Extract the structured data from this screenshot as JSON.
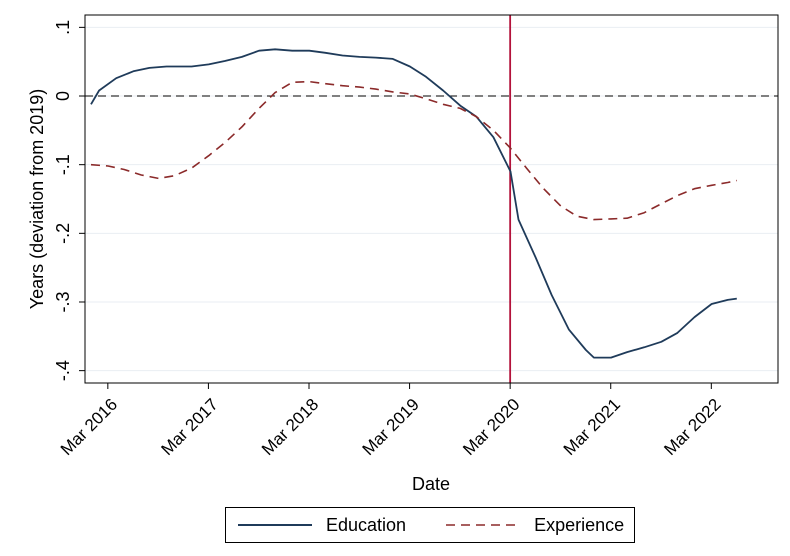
{
  "chart_data": {
    "type": "line",
    "xlabel": "Date",
    "ylabel": "Years (deviation from 2019)",
    "x_ticks": [
      {
        "label": "Mar 2016",
        "value": 2016.167
      },
      {
        "label": "Mar 2017",
        "value": 2017.167
      },
      {
        "label": "Mar 2018",
        "value": 2018.167
      },
      {
        "label": "Mar 2019",
        "value": 2019.167
      },
      {
        "label": "Mar 2020",
        "value": 2020.167
      },
      {
        "label": "Mar 2021",
        "value": 2021.167
      },
      {
        "label": "Mar 2022",
        "value": 2022.167
      }
    ],
    "y_ticks": [
      {
        "label": ".1",
        "value": 0.1
      },
      {
        "label": "0",
        "value": 0
      },
      {
        "label": "-.1",
        "value": -0.1
      },
      {
        "label": "-.2",
        "value": -0.2
      },
      {
        "label": "-.3",
        "value": -0.3
      },
      {
        "label": "-.4",
        "value": -0.4
      }
    ],
    "xlim": [
      2015.94,
      2022.83
    ],
    "ylim": [
      -0.418,
      0.118
    ],
    "grid": true,
    "reference_lines": {
      "horizontal": {
        "value": 0,
        "style": "dashed",
        "color": "#000000"
      },
      "vertical": {
        "value": 2020.167,
        "style": "solid",
        "color": "#b3123b"
      }
    },
    "legend_position": "bottom",
    "series": [
      {
        "name": "Education",
        "color": "#1f3b5a",
        "style": "solid",
        "points": [
          [
            2016.0,
            -0.012
          ],
          [
            2016.08,
            0.008
          ],
          [
            2016.25,
            0.026
          ],
          [
            2016.42,
            0.036
          ],
          [
            2016.58,
            0.041
          ],
          [
            2016.75,
            0.043
          ],
          [
            2016.92,
            0.043
          ],
          [
            2017.0,
            0.043
          ],
          [
            2017.17,
            0.046
          ],
          [
            2017.33,
            0.051
          ],
          [
            2017.5,
            0.057
          ],
          [
            2017.67,
            0.066
          ],
          [
            2017.83,
            0.068
          ],
          [
            2018.0,
            0.066
          ],
          [
            2018.17,
            0.066
          ],
          [
            2018.33,
            0.063
          ],
          [
            2018.5,
            0.059
          ],
          [
            2018.67,
            0.057
          ],
          [
            2018.83,
            0.056
          ],
          [
            2019.0,
            0.054
          ],
          [
            2019.17,
            0.043
          ],
          [
            2019.33,
            0.028
          ],
          [
            2019.5,
            0.008
          ],
          [
            2019.67,
            -0.014
          ],
          [
            2019.83,
            -0.03
          ],
          [
            2020.0,
            -0.06
          ],
          [
            2020.17,
            -0.11
          ],
          [
            2020.25,
            -0.18
          ],
          [
            2020.42,
            -0.235
          ],
          [
            2020.58,
            -0.29
          ],
          [
            2020.75,
            -0.34
          ],
          [
            2020.92,
            -0.37
          ],
          [
            2021.0,
            -0.381
          ],
          [
            2021.17,
            -0.381
          ],
          [
            2021.33,
            -0.373
          ],
          [
            2021.5,
            -0.366
          ],
          [
            2021.67,
            -0.358
          ],
          [
            2021.83,
            -0.345
          ],
          [
            2022.0,
            -0.322
          ],
          [
            2022.17,
            -0.303
          ],
          [
            2022.33,
            -0.297
          ],
          [
            2022.42,
            -0.295
          ]
        ]
      },
      {
        "name": "Experience",
        "color": "#8b2a2a",
        "style": "dashed",
        "points": [
          [
            2016.0,
            -0.1
          ],
          [
            2016.17,
            -0.102
          ],
          [
            2016.33,
            -0.107
          ],
          [
            2016.5,
            -0.115
          ],
          [
            2016.67,
            -0.12
          ],
          [
            2016.83,
            -0.116
          ],
          [
            2017.0,
            -0.105
          ],
          [
            2017.17,
            -0.087
          ],
          [
            2017.33,
            -0.068
          ],
          [
            2017.5,
            -0.045
          ],
          [
            2017.67,
            -0.018
          ],
          [
            2017.83,
            0.005
          ],
          [
            2018.0,
            0.02
          ],
          [
            2018.17,
            0.021
          ],
          [
            2018.33,
            0.018
          ],
          [
            2018.5,
            0.015
          ],
          [
            2018.67,
            0.013
          ],
          [
            2018.83,
            0.01
          ],
          [
            2019.0,
            0.006
          ],
          [
            2019.17,
            0.003
          ],
          [
            2019.33,
            -0.004
          ],
          [
            2019.5,
            -0.012
          ],
          [
            2019.67,
            -0.018
          ],
          [
            2019.83,
            -0.03
          ],
          [
            2020.0,
            -0.05
          ],
          [
            2020.17,
            -0.076
          ],
          [
            2020.33,
            -0.105
          ],
          [
            2020.5,
            -0.135
          ],
          [
            2020.67,
            -0.16
          ],
          [
            2020.83,
            -0.175
          ],
          [
            2021.0,
            -0.18
          ],
          [
            2021.17,
            -0.179
          ],
          [
            2021.33,
            -0.178
          ],
          [
            2021.5,
            -0.17
          ],
          [
            2021.67,
            -0.157
          ],
          [
            2021.83,
            -0.145
          ],
          [
            2022.0,
            -0.135
          ],
          [
            2022.17,
            -0.13
          ],
          [
            2022.33,
            -0.126
          ],
          [
            2022.42,
            -0.123
          ]
        ]
      }
    ]
  }
}
